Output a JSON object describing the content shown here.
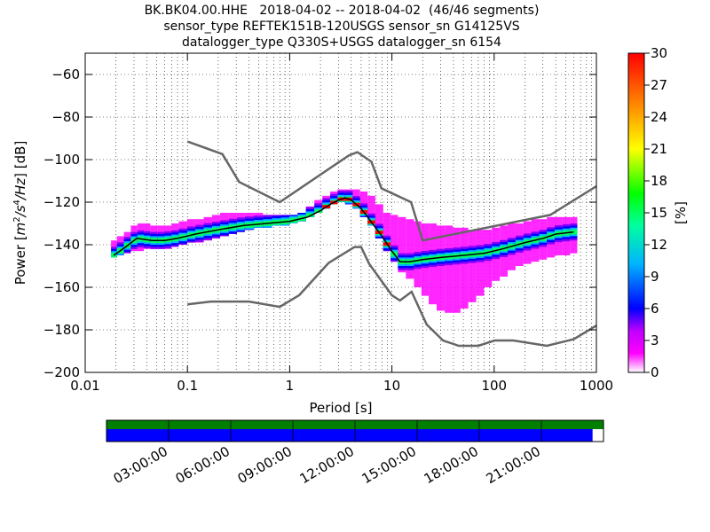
{
  "title": {
    "line1": "BK.BK04.00.HHE   2018-04-02 -- 2018-04-02  (46/46 segments)",
    "line2": "sensor_type REFTEK151B-120USGS sensor_sn G14125VS",
    "line3": "datalogger_type Q330S+USGS datalogger_sn 6154"
  },
  "colors": {
    "nlnm_nhnm": "#666666",
    "mode_line": "#000000",
    "coverage_green": "#007f00",
    "coverage_blue": "#0000ff",
    "grid": "#000000"
  },
  "chart_data": {
    "type": "heatmap",
    "xlabel": "Period [s]",
    "ylabel": "Power [m^2/s^4/Hz] [dB]",
    "xscale": "log",
    "xlim": [
      0.01,
      1000
    ],
    "ylim": [
      -200,
      -50
    ],
    "x_ticks": [
      0.01,
      0.1,
      1,
      10,
      100,
      1000
    ],
    "x_tick_labels": [
      "0.01",
      "0.1",
      "1",
      "10",
      "100",
      "1000"
    ],
    "y_ticks": [
      -200,
      -180,
      -160,
      -140,
      -120,
      -100,
      -80,
      -60
    ],
    "y_tick_labels": [
      "−200",
      "−180",
      "−160",
      "−140",
      "−120",
      "−100",
      "−80",
      "−60"
    ],
    "colorbar": {
      "label": "[%]",
      "range": [
        0,
        30
      ],
      "ticks": [
        0,
        3,
        6,
        9,
        12,
        15,
        18,
        21,
        24,
        27,
        30
      ],
      "colormap": "pqlx"
    },
    "nhnm": {
      "x": [
        0.1,
        0.22,
        0.32,
        0.8,
        3.8,
        4.6,
        6.3,
        7.9,
        15.4,
        20,
        354,
        1000
      ],
      "y": [
        -91.5,
        -97.4,
        -110.5,
        -120,
        -98,
        -96.5,
        -101,
        -113.5,
        -120,
        -138,
        -126,
        -112.5
      ]
    },
    "nlnm": {
      "x": [
        0.1,
        0.17,
        0.4,
        0.8,
        1.24,
        2.4,
        4.3,
        5,
        6,
        10,
        12,
        15.6,
        21.9,
        31.6,
        45,
        70,
        101,
        154,
        328,
        600,
        1000
      ],
      "y": [
        -168,
        -166.7,
        -166.7,
        -169.2,
        -163.7,
        -148.6,
        -141.1,
        -141.1,
        -149,
        -163.8,
        -166.2,
        -162.1,
        -177.5,
        -185,
        -187.5,
        -187.5,
        -185,
        -185,
        -187.5,
        -184.4,
        -178
      ]
    },
    "mode_line": {
      "x": [
        0.019,
        0.025,
        0.032,
        0.045,
        0.06,
        0.08,
        0.12,
        0.2,
        0.35,
        0.6,
        1.0,
        1.5,
        2.0,
        2.5,
        3.0,
        3.5,
        4.0,
        5.0,
        6.0,
        8.0,
        10,
        12,
        15,
        20,
        30,
        50,
        80,
        120,
        200,
        300,
        400,
        600
      ],
      "y": [
        -145,
        -141,
        -137,
        -138,
        -138,
        -137,
        -135,
        -133,
        -131,
        -130,
        -129,
        -127,
        -124,
        -121,
        -119,
        -118,
        -119,
        -123,
        -128,
        -136,
        -143,
        -148,
        -148,
        -147,
        -146,
        -145,
        -144,
        -142,
        -139,
        -137,
        -135,
        -134
      ]
    },
    "heat_columns": [
      {
        "x": 0.019,
        "y_min": -146,
        "y_max": -138
      },
      {
        "x": 0.022,
        "y_min": -145,
        "y_max": -136
      },
      {
        "x": 0.026,
        "y_min": -144,
        "y_max": -134
      },
      {
        "x": 0.03,
        "y_min": -143,
        "y_max": -131
      },
      {
        "x": 0.035,
        "y_min": -143,
        "y_max": -130
      },
      {
        "x": 0.04,
        "y_min": -142,
        "y_max": -130
      },
      {
        "x": 0.047,
        "y_min": -142,
        "y_max": -131
      },
      {
        "x": 0.055,
        "y_min": -142,
        "y_max": -131
      },
      {
        "x": 0.065,
        "y_min": -142,
        "y_max": -131
      },
      {
        "x": 0.075,
        "y_min": -141,
        "y_max": -130
      },
      {
        "x": 0.09,
        "y_min": -140,
        "y_max": -129
      },
      {
        "x": 0.11,
        "y_min": -139,
        "y_max": -128
      },
      {
        "x": 0.13,
        "y_min": -139,
        "y_max": -128
      },
      {
        "x": 0.16,
        "y_min": -138,
        "y_max": -127
      },
      {
        "x": 0.19,
        "y_min": -137,
        "y_max": -126
      },
      {
        "x": 0.23,
        "y_min": -136,
        "y_max": -125
      },
      {
        "x": 0.28,
        "y_min": -135,
        "y_max": -125
      },
      {
        "x": 0.33,
        "y_min": -134,
        "y_max": -125
      },
      {
        "x": 0.4,
        "y_min": -133,
        "y_max": -125
      },
      {
        "x": 0.5,
        "y_min": -132,
        "y_max": -125
      },
      {
        "x": 0.6,
        "y_min": -132,
        "y_max": -126
      },
      {
        "x": 0.75,
        "y_min": -131,
        "y_max": -126
      },
      {
        "x": 0.9,
        "y_min": -131,
        "y_max": -126
      },
      {
        "x": 1.1,
        "y_min": -130,
        "y_max": -126
      },
      {
        "x": 1.3,
        "y_min": -129,
        "y_max": -125
      },
      {
        "x": 1.6,
        "y_min": -127,
        "y_max": -122
      },
      {
        "x": 1.9,
        "y_min": -125,
        "y_max": -119
      },
      {
        "x": 2.3,
        "y_min": -123,
        "y_max": -117
      },
      {
        "x": 2.7,
        "y_min": -121,
        "y_max": -115
      },
      {
        "x": 3.2,
        "y_min": -120,
        "y_max": -114
      },
      {
        "x": 3.8,
        "y_min": -121,
        "y_max": -114
      },
      {
        "x": 4.5,
        "y_min": -123,
        "y_max": -114
      },
      {
        "x": 5.3,
        "y_min": -127,
        "y_max": -115
      },
      {
        "x": 6.3,
        "y_min": -131,
        "y_max": -117
      },
      {
        "x": 7.5,
        "y_min": -137,
        "y_max": -121
      },
      {
        "x": 9,
        "y_min": -143,
        "y_max": -125
      },
      {
        "x": 10.5,
        "y_min": -148,
        "y_max": -126
      },
      {
        "x": 12.5,
        "y_min": -153,
        "y_max": -127
      },
      {
        "x": 15,
        "y_min": -156,
        "y_max": -128
      },
      {
        "x": 18,
        "y_min": -160,
        "y_max": -129
      },
      {
        "x": 21,
        "y_min": -164,
        "y_max": -130
      },
      {
        "x": 25,
        "y_min": -168,
        "y_max": -130
      },
      {
        "x": 30,
        "y_min": -171,
        "y_max": -131
      },
      {
        "x": 36,
        "y_min": -172,
        "y_max": -131
      },
      {
        "x": 43,
        "y_min": -172,
        "y_max": -132
      },
      {
        "x": 51,
        "y_min": -170,
        "y_max": -132
      },
      {
        "x": 61,
        "y_min": -167,
        "y_max": -133
      },
      {
        "x": 73,
        "y_min": -164,
        "y_max": -133
      },
      {
        "x": 87,
        "y_min": -160,
        "y_max": -133
      },
      {
        "x": 104,
        "y_min": -157,
        "y_max": -132
      },
      {
        "x": 124,
        "y_min": -155,
        "y_max": -131
      },
      {
        "x": 148,
        "y_min": -152,
        "y_max": -130
      },
      {
        "x": 177,
        "y_min": -150,
        "y_max": -130
      },
      {
        "x": 211,
        "y_min": -149,
        "y_max": -129
      },
      {
        "x": 252,
        "y_min": -148,
        "y_max": -128
      },
      {
        "x": 300,
        "y_min": -147,
        "y_max": -128
      },
      {
        "x": 358,
        "y_min": -146,
        "y_max": -127
      },
      {
        "x": 427,
        "y_min": -145,
        "y_max": -127
      },
      {
        "x": 510,
        "y_min": -145,
        "y_max": -127
      },
      {
        "x": 600,
        "y_min": -144,
        "y_max": -127
      }
    ],
    "coverage": {
      "time_tick_labels": [
        "03:00:00",
        "06:00:00",
        "09:00:00",
        "12:00:00",
        "15:00:00",
        "18:00:00",
        "21:00:00"
      ],
      "data_fraction": 0.978,
      "psd_fraction": 1.0
    }
  }
}
